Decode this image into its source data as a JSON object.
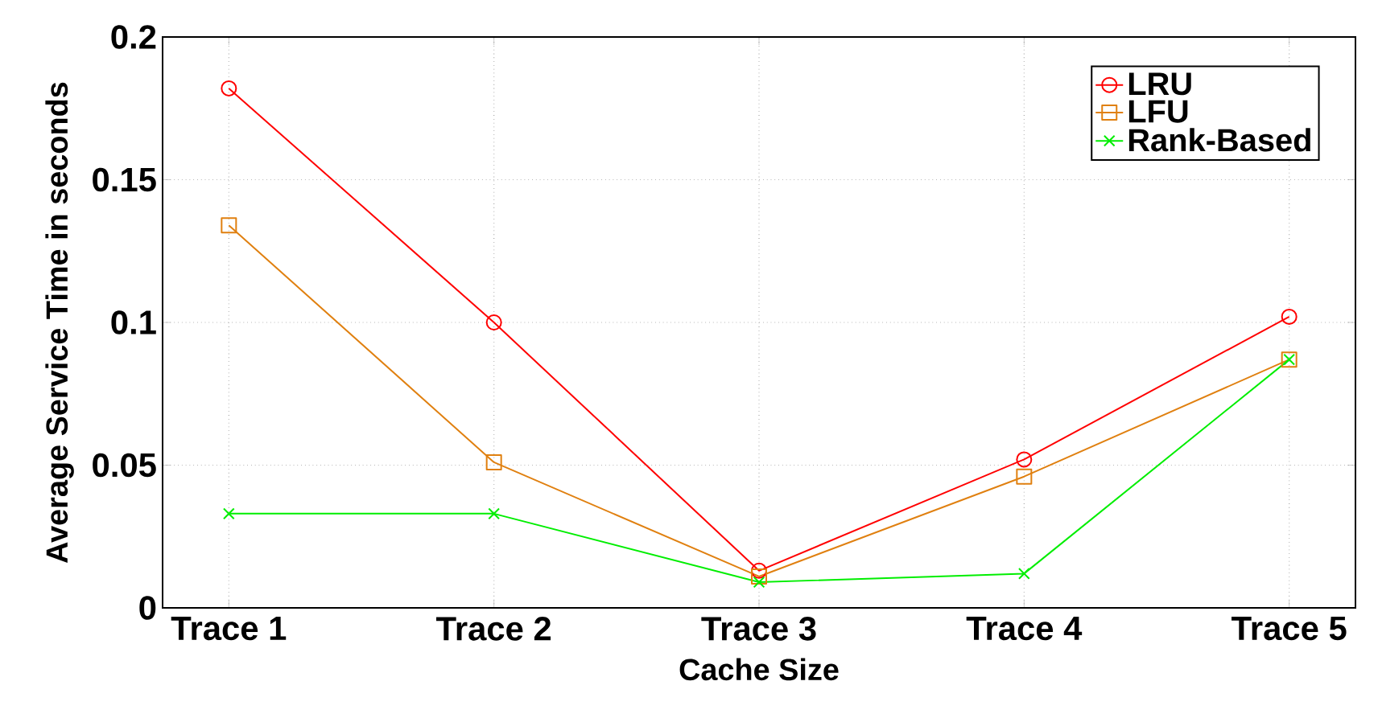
{
  "chart_data": {
    "type": "line",
    "xlabel": "Cache Size",
    "ylabel": "Average Service Time in seconds",
    "categories": [
      "Trace 1",
      "Trace 2",
      "Trace 3",
      "Trace 4",
      "Trace 5"
    ],
    "series": [
      {
        "name": "LRU",
        "color": "#ff0000",
        "marker": "circle",
        "values": [
          0.182,
          0.1,
          0.013,
          0.052,
          0.102
        ]
      },
      {
        "name": "LFU",
        "color": "#e08010",
        "marker": "square",
        "values": [
          0.134,
          0.051,
          0.011,
          0.046,
          0.087
        ]
      },
      {
        "name": "Rank-Based",
        "color": "#00ee00",
        "marker": "cross",
        "values": [
          0.033,
          0.033,
          0.009,
          0.012,
          0.087
        ]
      }
    ],
    "ylim": [
      0,
      0.2
    ],
    "yticks": [
      0,
      0.05,
      0.1,
      0.15,
      0.2
    ],
    "grid": true,
    "legend": "top right",
    "line_style": "solid"
  }
}
